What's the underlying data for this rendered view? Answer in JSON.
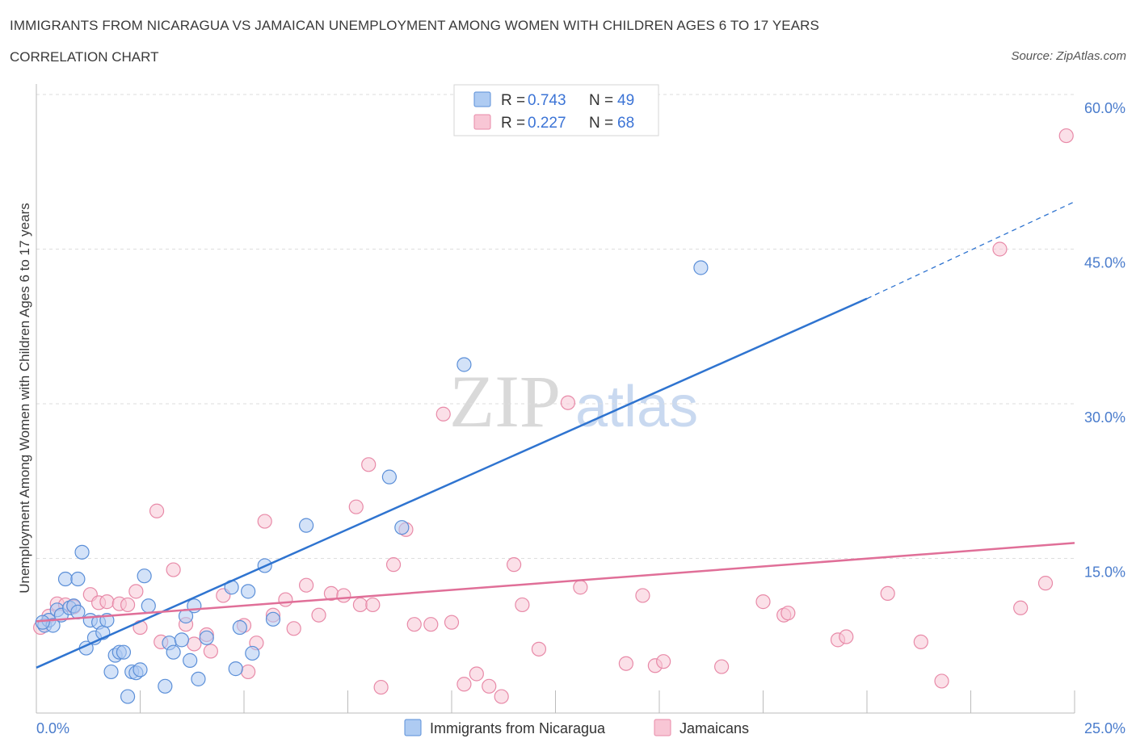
{
  "header": {
    "title": "IMMIGRANTS FROM NICARAGUA VS JAMAICAN UNEMPLOYMENT AMONG WOMEN WITH CHILDREN AGES 6 TO 17 YEARS",
    "subtitle": "CORRELATION CHART",
    "source": "Source: ZipAtlas.com"
  },
  "watermark": {
    "zip": "ZIP",
    "atlas": "atlas"
  },
  "legend": {
    "r_label": "R = ",
    "n_label": "N = ",
    "items": [
      {
        "r": "0.743",
        "n": "49"
      },
      {
        "r": "0.227",
        "n": "68"
      }
    ]
  },
  "bottom_legend": {
    "items": [
      "Immigrants from Nicaragua",
      "Jamaicans"
    ]
  },
  "colors": {
    "blue_fill": "#aecbf2",
    "blue_stroke": "#5b8fd8",
    "blue_line": "#2f74d0",
    "pink_fill": "#f8c6d5",
    "pink_stroke": "#e88aa8",
    "pink_line": "#e06f98",
    "grid": "#dedede",
    "tick_text": "#4a7ccc"
  },
  "chart_data": {
    "type": "scatter",
    "title": "IMMIGRANTS FROM NICARAGUA VS JAMAICAN UNEMPLOYMENT AMONG WOMEN WITH CHILDREN AGES 6 TO 17 YEARS",
    "xlabel": "",
    "ylabel": "Unemployment Among Women with Children Ages 6 to 17 years",
    "xlim": [
      0,
      25
    ],
    "ylim": [
      0,
      60
    ],
    "x_tick_labels": [
      "0.0%",
      "25.0%"
    ],
    "y_ticks": [
      15,
      30,
      45,
      60
    ],
    "y_tick_labels": [
      "15.0%",
      "30.0%",
      "45.0%",
      "60.0%"
    ],
    "grid": true,
    "legend_position": "top-center",
    "series": [
      {
        "name": "Immigrants from Nicaragua",
        "R": 0.743,
        "N": 49,
        "trend": {
          "x0": 0,
          "y0": 4.4,
          "x1": 20,
          "y1": 40.2,
          "dash_to_x": 25,
          "dash_to_y": 49.6
        },
        "points": [
          [
            0.2,
            8.5
          ],
          [
            0.3,
            9.0
          ],
          [
            0.4,
            8.5
          ],
          [
            0.5,
            10.0
          ],
          [
            0.6,
            9.5
          ],
          [
            0.7,
            13.0
          ],
          [
            0.8,
            10.2
          ],
          [
            0.9,
            10.4
          ],
          [
            1.0,
            13.0
          ],
          [
            1.1,
            15.6
          ],
          [
            1.2,
            6.3
          ],
          [
            1.3,
            9.0
          ],
          [
            1.4,
            7.3
          ],
          [
            1.5,
            8.8
          ],
          [
            1.6,
            7.8
          ],
          [
            1.7,
            9.0
          ],
          [
            1.8,
            4.0
          ],
          [
            1.9,
            5.6
          ],
          [
            2.0,
            5.9
          ],
          [
            2.1,
            5.9
          ],
          [
            2.2,
            1.6
          ],
          [
            2.3,
            4.0
          ],
          [
            2.4,
            3.9
          ],
          [
            2.5,
            4.2
          ],
          [
            2.6,
            13.3
          ],
          [
            2.7,
            10.4
          ],
          [
            3.1,
            2.6
          ],
          [
            3.2,
            6.8
          ],
          [
            3.3,
            5.9
          ],
          [
            3.5,
            7.1
          ],
          [
            3.6,
            9.4
          ],
          [
            3.7,
            5.1
          ],
          [
            3.8,
            10.4
          ],
          [
            3.9,
            3.3
          ],
          [
            4.1,
            7.3
          ],
          [
            4.7,
            12.2
          ],
          [
            4.8,
            4.3
          ],
          [
            4.9,
            8.3
          ],
          [
            5.1,
            11.8
          ],
          [
            5.2,
            5.8
          ],
          [
            5.5,
            14.3
          ],
          [
            5.7,
            9.1
          ],
          [
            6.5,
            18.2
          ],
          [
            8.5,
            22.9
          ],
          [
            8.8,
            18.0
          ],
          [
            10.3,
            33.8
          ],
          [
            16.0,
            43.2
          ],
          [
            0.15,
            8.8
          ],
          [
            1.0,
            9.8
          ]
        ]
      },
      {
        "name": "Jamaicans",
        "R": 0.227,
        "N": 68,
        "trend": {
          "x0": 0,
          "y0": 8.9,
          "x1": 25,
          "y1": 16.5
        },
        "points": [
          [
            0.1,
            8.3
          ],
          [
            0.3,
            9.4
          ],
          [
            0.5,
            10.6
          ],
          [
            0.7,
            10.5
          ],
          [
            0.9,
            10.3
          ],
          [
            1.3,
            11.5
          ],
          [
            1.5,
            10.7
          ],
          [
            1.7,
            10.8
          ],
          [
            2.0,
            10.6
          ],
          [
            2.2,
            10.5
          ],
          [
            2.4,
            11.8
          ],
          [
            2.5,
            8.3
          ],
          [
            2.9,
            19.6
          ],
          [
            3.0,
            6.9
          ],
          [
            3.3,
            13.9
          ],
          [
            3.6,
            8.6
          ],
          [
            3.8,
            6.7
          ],
          [
            4.1,
            7.6
          ],
          [
            4.2,
            6.0
          ],
          [
            4.5,
            11.4
          ],
          [
            5.0,
            8.5
          ],
          [
            5.1,
            4.0
          ],
          [
            5.3,
            6.8
          ],
          [
            5.5,
            18.6
          ],
          [
            5.7,
            9.5
          ],
          [
            6.0,
            11.0
          ],
          [
            6.2,
            8.2
          ],
          [
            6.5,
            12.4
          ],
          [
            6.8,
            9.5
          ],
          [
            7.1,
            11.6
          ],
          [
            7.4,
            11.4
          ],
          [
            7.7,
            20.0
          ],
          [
            7.8,
            10.5
          ],
          [
            8.0,
            24.1
          ],
          [
            8.1,
            10.5
          ],
          [
            8.3,
            2.5
          ],
          [
            8.6,
            14.4
          ],
          [
            8.9,
            17.8
          ],
          [
            9.1,
            8.6
          ],
          [
            9.5,
            8.6
          ],
          [
            9.8,
            29.0
          ],
          [
            10.0,
            8.8
          ],
          [
            10.3,
            2.8
          ],
          [
            10.6,
            3.8
          ],
          [
            10.9,
            2.6
          ],
          [
            11.2,
            1.6
          ],
          [
            11.5,
            14.4
          ],
          [
            11.7,
            10.5
          ],
          [
            12.1,
            6.2
          ],
          [
            12.8,
            30.1
          ],
          [
            13.1,
            12.2
          ],
          [
            14.2,
            4.8
          ],
          [
            14.6,
            11.4
          ],
          [
            14.9,
            4.6
          ],
          [
            15.1,
            5.0
          ],
          [
            16.5,
            4.5
          ],
          [
            17.5,
            10.8
          ],
          [
            18.0,
            9.5
          ],
          [
            19.3,
            7.1
          ],
          [
            19.5,
            7.4
          ],
          [
            20.5,
            11.6
          ],
          [
            21.3,
            6.9
          ],
          [
            21.8,
            3.1
          ],
          [
            23.2,
            45.0
          ],
          [
            24.3,
            12.6
          ],
          [
            24.8,
            56.0
          ],
          [
            23.7,
            10.2
          ],
          [
            18.1,
            9.7
          ]
        ]
      }
    ]
  }
}
